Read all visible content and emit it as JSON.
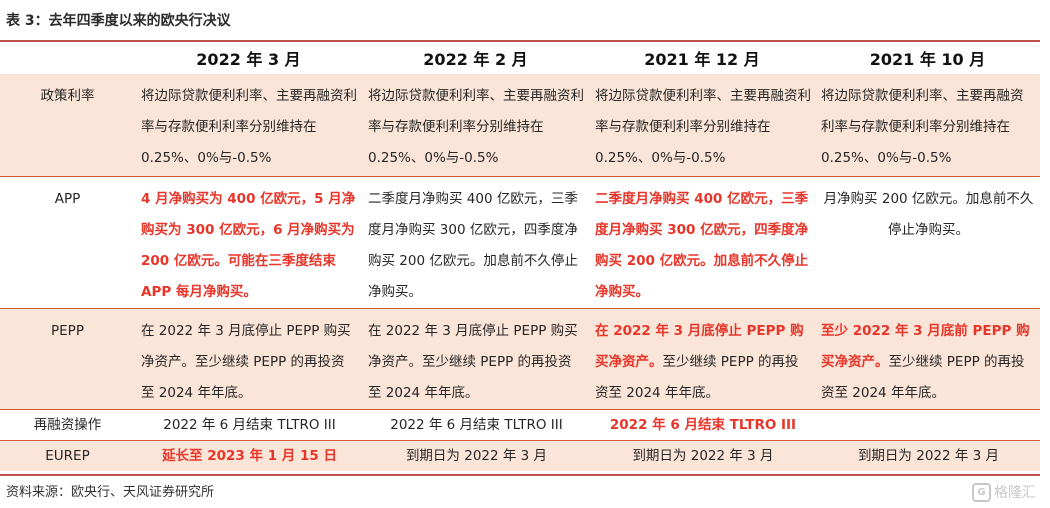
{
  "caption": "表 3：去年四季度以来的欧央行决议",
  "columns": [
    "",
    "2022 年 3 月",
    "2022 年 2 月",
    "2021 年 12 月",
    "2021 年 10 月"
  ],
  "rows": {
    "policy_rate": {
      "label": "政策利率",
      "c1": "将边际贷款便利利率、主要再融资利率与存款便利利率分别维持在 0.25%、0%与-0.5%",
      "c2": "将边际贷款便利利率、主要再融资利率与存款便利利率分别维持在 0.25%、0%与-0.5%",
      "c3": "将边际贷款便利利率、主要再融资利率与存款便利利率分别维持在 0.25%、0%与-0.5%",
      "c4": "将边际贷款便利利率、主要再融资利率与存款便利利率分别维持在 0.25%、0%与-0.5%"
    },
    "app": {
      "label": "APP",
      "c1": "4 月净购买为 400 亿欧元，5 月净购买为 300 亿欧元，6 月净购买为 200 亿欧元。可能在三季度结束 APP 每月净购买。",
      "c2": "二季度月净购买 400 亿欧元，三季度月净购买 300 亿欧元，四季度净购买 200 亿欧元。加息前不久停止净购买。",
      "c3": "二季度月净购买 400 亿欧元，三季度月净购买 300 亿欧元，四季度净购买 200 亿欧元。加息前不久停止净购买。",
      "c4": "月净购买 200 亿欧元。加息前不久停止净购买。"
    },
    "pepp": {
      "label": "PEPP",
      "c1": "在 2022 年 3 月底停止 PEPP 购买净资产。至少继续 PEPP 的再投资至 2024 年年底。",
      "c2": "在 2022 年 3 月底停止 PEPP 购买净资产。至少继续 PEPP 的再投资至 2024 年年底。",
      "c3_hl": "在 2022 年 3 月底停止 PEPP 购买净资产。",
      "c3_rest": "至少继续 PEPP 的再投资至 2024 年年底。",
      "c4_hl": "至少 2022 年 3 月底前 PEPP 购买净资产。",
      "c4_rest": "至少继续 PEPP 的再投资至 2024 年年底。"
    },
    "tltro": {
      "label": "再融资操作",
      "c1": "2022 年 6 月结束 TLTRO III",
      "c2": "2022 年 6 月结束 TLTRO III",
      "c3": "2022 年 6 月结束 TLTRO III",
      "c4": ""
    },
    "eurep": {
      "label": "EUREP",
      "c1": "延长至 2023 年 1 月 15 日",
      "c2": "到期日为 2022 年 3 月",
      "c3": "到期日为 2022 年 3 月",
      "c4": "到期日为 2022 年 3 月"
    }
  },
  "source": "资料来源：欧央行、天风证券研究所",
  "watermark": "格隆汇",
  "colors": {
    "accent_line": "#c0504d",
    "highlight_text": "#e8352a",
    "shade": "#fbe5d8"
  }
}
